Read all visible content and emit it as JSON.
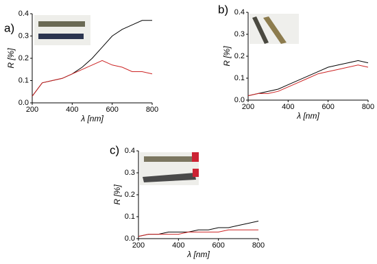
{
  "chart_data": [
    {
      "type": "line",
      "panel_label": "a)",
      "ylabel": "R [%]",
      "xlabel": "λ [nm]",
      "x": [
        200,
        250,
        300,
        350,
        400,
        450,
        500,
        550,
        600,
        650,
        700,
        750,
        800
      ],
      "series": [
        {
          "color": "#000000",
          "values": [
            0.03,
            0.09,
            0.1,
            0.11,
            0.13,
            0.16,
            0.2,
            0.25,
            0.3,
            0.33,
            0.35,
            0.37,
            0.37
          ]
        },
        {
          "color": "#cc2222",
          "values": [
            0.03,
            0.09,
            0.1,
            0.11,
            0.13,
            0.15,
            0.17,
            0.19,
            0.17,
            0.16,
            0.14,
            0.14,
            0.13
          ]
        }
      ],
      "xlim": [
        200,
        800
      ],
      "xticks": [
        200,
        400,
        600,
        800
      ],
      "ylim": [
        0,
        0.4
      ],
      "yticks": [
        {
          "value": 0,
          "label": "0.0"
        },
        0.1,
        0.2,
        0.3,
        0.4
      ]
    },
    {
      "type": "line",
      "panel_label": "b)",
      "ylabel": "R [%]",
      "xlabel": "λ [nm]",
      "x": [
        200,
        250,
        300,
        350,
        400,
        450,
        500,
        550,
        600,
        650,
        700,
        750,
        800
      ],
      "series": [
        {
          "color": "#000000",
          "values": [
            0.02,
            0.03,
            0.04,
            0.05,
            0.07,
            0.09,
            0.11,
            0.13,
            0.15,
            0.16,
            0.17,
            0.18,
            0.17
          ]
        },
        {
          "color": "#cc2222",
          "values": [
            0.02,
            0.03,
            0.03,
            0.04,
            0.06,
            0.08,
            0.1,
            0.12,
            0.13,
            0.14,
            0.15,
            0.16,
            0.15
          ]
        }
      ],
      "xlim": [
        200,
        800
      ],
      "xticks": [
        200,
        400,
        600,
        800
      ],
      "ylim": [
        0,
        0.4
      ],
      "yticks": [
        {
          "value": 0,
          "label": "0.0"
        },
        0.1,
        0.2,
        0.3,
        0.4
      ]
    },
    {
      "type": "line",
      "panel_label": "c)",
      "ylabel": "R [%]",
      "xlabel": "λ [nm]",
      "x": [
        200,
        250,
        300,
        350,
        400,
        450,
        500,
        550,
        600,
        650,
        700,
        750,
        800
      ],
      "series": [
        {
          "color": "#000000",
          "values": [
            0.01,
            0.02,
            0.02,
            0.03,
            0.03,
            0.03,
            0.04,
            0.04,
            0.05,
            0.05,
            0.06,
            0.07,
            0.08
          ]
        },
        {
          "color": "#cc2222",
          "values": [
            0.01,
            0.02,
            0.02,
            0.02,
            0.02,
            0.03,
            0.03,
            0.03,
            0.03,
            0.04,
            0.04,
            0.04,
            0.04
          ]
        }
      ],
      "xlim": [
        200,
        800
      ],
      "xticks": [
        200,
        400,
        600,
        800
      ],
      "ylim": [
        0,
        0.4
      ],
      "yticks": [
        {
          "value": 0,
          "label": "0.0"
        },
        0.1,
        0.2,
        0.3,
        0.4
      ]
    }
  ]
}
